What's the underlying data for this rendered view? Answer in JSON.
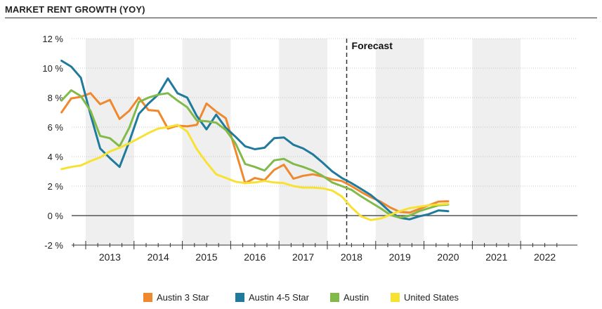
{
  "header": {
    "title": "MARKET RENT GROWTH (YOY)"
  },
  "chart_data": {
    "type": "line",
    "title": "MARKET RENT GROWTH (YOY)",
    "xlabel": "",
    "ylabel": "",
    "ylim": [
      -2,
      12
    ],
    "xlim": [
      2012.4,
      2022.9
    ],
    "y_ticks": [
      -2,
      0,
      2,
      4,
      6,
      8,
      10,
      12
    ],
    "y_tick_labels": [
      "-2 %",
      "0 %",
      "2 %",
      "4 %",
      "6 %",
      "8 %",
      "10 %",
      "12 %"
    ],
    "x_tick_labels": [
      "2013",
      "2014",
      "2015",
      "2016",
      "2017",
      "2018",
      "2019",
      "2020",
      "2021",
      "2022"
    ],
    "forecast_label": "Forecast",
    "forecast_start": 2018.4,
    "grid": true,
    "legend_position": "bottom",
    "series": [
      {
        "name": "Austin 3 Star",
        "color": "#f0882e",
        "points": [
          [
            2012.5,
            7.0
          ],
          [
            2012.7,
            7.95
          ],
          [
            2012.9,
            8.05
          ],
          [
            2013.1,
            8.3
          ],
          [
            2013.3,
            7.55
          ],
          [
            2013.5,
            7.85
          ],
          [
            2013.7,
            6.55
          ],
          [
            2013.9,
            7.1
          ],
          [
            2014.1,
            8.0
          ],
          [
            2014.3,
            7.15
          ],
          [
            2014.5,
            7.1
          ],
          [
            2014.7,
            5.9
          ],
          [
            2014.9,
            6.1
          ],
          [
            2015.1,
            6.05
          ],
          [
            2015.3,
            6.15
          ],
          [
            2015.5,
            7.6
          ],
          [
            2015.7,
            7.05
          ],
          [
            2015.9,
            6.6
          ],
          [
            2016.1,
            4.4
          ],
          [
            2016.3,
            2.2
          ],
          [
            2016.5,
            2.55
          ],
          [
            2016.7,
            2.4
          ],
          [
            2016.9,
            3.1
          ],
          [
            2017.1,
            3.45
          ],
          [
            2017.3,
            2.5
          ],
          [
            2017.5,
            2.7
          ],
          [
            2017.7,
            2.8
          ],
          [
            2017.9,
            2.65
          ],
          [
            2018.1,
            2.45
          ],
          [
            2018.3,
            2.35
          ],
          [
            2018.5,
            2.0
          ],
          [
            2018.7,
            1.6
          ],
          [
            2018.9,
            1.25
          ],
          [
            2019.1,
            0.95
          ],
          [
            2019.3,
            0.55
          ],
          [
            2019.5,
            0.25
          ],
          [
            2019.7,
            0.2
          ],
          [
            2019.9,
            0.45
          ],
          [
            2020.1,
            0.7
          ],
          [
            2020.3,
            0.95
          ],
          [
            2020.5,
            0.97
          ]
        ]
      },
      {
        "name": "Austin 4-5 Star",
        "color": "#1f7a9c",
        "points": [
          [
            2012.5,
            10.5
          ],
          [
            2012.7,
            10.1
          ],
          [
            2012.9,
            9.35
          ],
          [
            2013.1,
            6.85
          ],
          [
            2013.3,
            4.55
          ],
          [
            2013.5,
            3.9
          ],
          [
            2013.7,
            3.3
          ],
          [
            2013.9,
            5.0
          ],
          [
            2014.1,
            6.9
          ],
          [
            2014.3,
            7.6
          ],
          [
            2014.5,
            8.2
          ],
          [
            2014.7,
            9.3
          ],
          [
            2014.9,
            8.3
          ],
          [
            2015.1,
            8.0
          ],
          [
            2015.3,
            6.75
          ],
          [
            2015.5,
            5.85
          ],
          [
            2015.7,
            6.85
          ],
          [
            2015.9,
            5.95
          ],
          [
            2016.1,
            5.35
          ],
          [
            2016.3,
            4.7
          ],
          [
            2016.5,
            4.5
          ],
          [
            2016.7,
            4.6
          ],
          [
            2016.9,
            5.25
          ],
          [
            2017.1,
            5.3
          ],
          [
            2017.3,
            4.8
          ],
          [
            2017.5,
            4.55
          ],
          [
            2017.7,
            4.15
          ],
          [
            2017.9,
            3.6
          ],
          [
            2018.1,
            3.0
          ],
          [
            2018.3,
            2.55
          ],
          [
            2018.5,
            2.2
          ],
          [
            2018.7,
            1.8
          ],
          [
            2018.9,
            1.4
          ],
          [
            2019.1,
            0.85
          ],
          [
            2019.3,
            0.25
          ],
          [
            2019.5,
            -0.15
          ],
          [
            2019.7,
            -0.25
          ],
          [
            2019.9,
            -0.05
          ],
          [
            2020.1,
            0.1
          ],
          [
            2020.3,
            0.35
          ],
          [
            2020.5,
            0.3
          ]
        ]
      },
      {
        "name": "Austin",
        "color": "#82ba4a",
        "points": [
          [
            2012.5,
            7.8
          ],
          [
            2012.7,
            8.5
          ],
          [
            2012.9,
            8.1
          ],
          [
            2013.1,
            7.1
          ],
          [
            2013.3,
            5.4
          ],
          [
            2013.5,
            5.25
          ],
          [
            2013.7,
            4.7
          ],
          [
            2013.9,
            5.95
          ],
          [
            2014.1,
            7.7
          ],
          [
            2014.3,
            8.0
          ],
          [
            2014.5,
            8.2
          ],
          [
            2014.7,
            8.3
          ],
          [
            2014.9,
            7.8
          ],
          [
            2015.1,
            7.35
          ],
          [
            2015.3,
            6.45
          ],
          [
            2015.5,
            6.4
          ],
          [
            2015.7,
            6.3
          ],
          [
            2015.9,
            5.8
          ],
          [
            2016.1,
            4.9
          ],
          [
            2016.3,
            3.5
          ],
          [
            2016.5,
            3.3
          ],
          [
            2016.7,
            3.05
          ],
          [
            2016.9,
            3.75
          ],
          [
            2017.1,
            3.85
          ],
          [
            2017.3,
            3.5
          ],
          [
            2017.5,
            3.3
          ],
          [
            2017.7,
            3.05
          ],
          [
            2017.9,
            2.7
          ],
          [
            2018.1,
            2.25
          ],
          [
            2018.3,
            2.0
          ],
          [
            2018.5,
            1.75
          ],
          [
            2018.7,
            1.3
          ],
          [
            2018.9,
            0.9
          ],
          [
            2019.1,
            0.5
          ],
          [
            2019.3,
            0.05
          ],
          [
            2019.5,
            -0.15
          ],
          [
            2019.7,
            0.0
          ],
          [
            2019.9,
            0.3
          ],
          [
            2020.1,
            0.5
          ],
          [
            2020.3,
            0.7
          ],
          [
            2020.5,
            0.75
          ]
        ]
      },
      {
        "name": "United States",
        "color": "#f7e233",
        "points": [
          [
            2012.5,
            3.15
          ],
          [
            2012.7,
            3.3
          ],
          [
            2012.9,
            3.4
          ],
          [
            2013.1,
            3.7
          ],
          [
            2013.3,
            3.95
          ],
          [
            2013.5,
            4.35
          ],
          [
            2013.7,
            4.6
          ],
          [
            2013.9,
            4.9
          ],
          [
            2014.1,
            5.25
          ],
          [
            2014.3,
            5.6
          ],
          [
            2014.5,
            5.9
          ],
          [
            2014.7,
            6.0
          ],
          [
            2014.9,
            6.15
          ],
          [
            2015.1,
            5.7
          ],
          [
            2015.3,
            4.5
          ],
          [
            2015.5,
            3.6
          ],
          [
            2015.7,
            2.8
          ],
          [
            2015.9,
            2.55
          ],
          [
            2016.1,
            2.3
          ],
          [
            2016.3,
            2.2
          ],
          [
            2016.5,
            2.25
          ],
          [
            2016.7,
            2.35
          ],
          [
            2016.9,
            2.25
          ],
          [
            2017.1,
            2.2
          ],
          [
            2017.3,
            2.0
          ],
          [
            2017.5,
            1.9
          ],
          [
            2017.7,
            1.9
          ],
          [
            2017.9,
            1.85
          ],
          [
            2018.1,
            1.7
          ],
          [
            2018.3,
            1.3
          ],
          [
            2018.5,
            0.55
          ],
          [
            2018.7,
            -0.05
          ],
          [
            2018.9,
            -0.3
          ],
          [
            2019.1,
            -0.2
          ],
          [
            2019.3,
            0.05
          ],
          [
            2019.5,
            0.3
          ],
          [
            2019.7,
            0.5
          ],
          [
            2019.9,
            0.6
          ],
          [
            2020.1,
            0.7
          ],
          [
            2020.3,
            0.75
          ],
          [
            2020.5,
            0.8
          ]
        ]
      }
    ]
  }
}
